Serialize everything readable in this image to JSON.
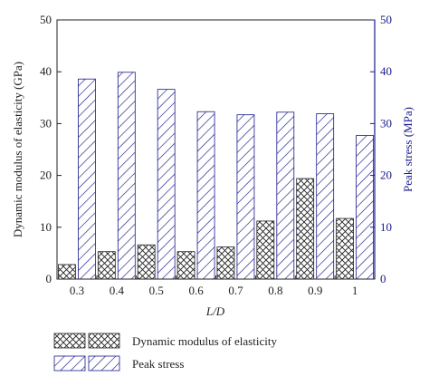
{
  "colors": {
    "left_axis": "#222222",
    "right_axis": "#1a1a8c",
    "series1_stroke": "#222222",
    "series2_stroke": "#1a1a8c"
  },
  "chart_data": {
    "type": "bar",
    "xlabel": "L/D",
    "ylabel_left": "Dynamic modulus of elasticity (GPa)",
    "ylabel_right": "Peak stress (MPa)",
    "categories": [
      "0.3",
      "0.4",
      "0.5",
      "0.6",
      "0.7",
      "0.8",
      "0.9",
      "1"
    ],
    "ylim_left": [
      0,
      50
    ],
    "ylim_right": [
      0,
      50
    ],
    "yticks_left": [
      "0",
      "10",
      "20",
      "30",
      "40",
      "50"
    ],
    "yticks_right": [
      "0",
      "10",
      "20",
      "30",
      "40",
      "50"
    ],
    "grid": false,
    "legend_position": "bottom",
    "series": [
      {
        "name": "Dynamic modulus of elasticity",
        "axis": "left",
        "pattern": "crosshatch",
        "values": [
          2.8,
          5.3,
          6.6,
          5.3,
          6.2,
          11.2,
          19.4,
          11.7
        ]
      },
      {
        "name": "Peak stress",
        "axis": "right",
        "pattern": "diagonal",
        "values": [
          38.6,
          39.9,
          36.6,
          32.3,
          31.7,
          32.2,
          31.9,
          27.7
        ]
      }
    ]
  }
}
